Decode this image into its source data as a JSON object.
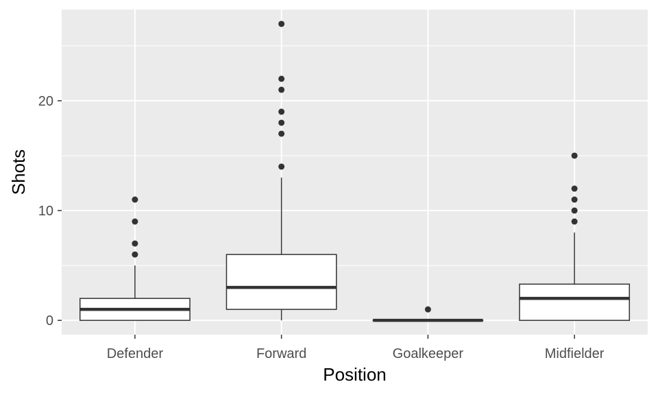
{
  "chart_data": {
    "type": "boxplot",
    "title": "",
    "xlabel": "Position",
    "ylabel": "Shots",
    "categories": [
      "Defender",
      "Forward",
      "Goalkeeper",
      "Midfielder"
    ],
    "ylim": [
      -1.3,
      28.3
    ],
    "yticks": [
      0,
      10,
      20
    ],
    "yticklabels": [
      "0",
      "10",
      "20"
    ],
    "grid": true,
    "legend": "none",
    "boxes": [
      {
        "category": "Defender",
        "whisker_low": 0,
        "q1": 0,
        "median": 1,
        "q3": 2,
        "whisker_high": 5,
        "outliers": [
          6,
          7,
          9,
          11
        ]
      },
      {
        "category": "Forward",
        "whisker_low": 0,
        "q1": 1,
        "median": 3,
        "q3": 6,
        "whisker_high": 13,
        "outliers": [
          14,
          17,
          18,
          19,
          21,
          22,
          27
        ]
      },
      {
        "category": "Goalkeeper",
        "whisker_low": 0,
        "q1": 0,
        "median": 0,
        "q3": 0,
        "whisker_high": 0,
        "outliers": [
          1
        ]
      },
      {
        "category": "Midfielder",
        "whisker_low": 0,
        "q1": 0,
        "median": 2,
        "q3": 3.3,
        "whisker_high": 8,
        "outliers": [
          9,
          10,
          11,
          12,
          15
        ]
      }
    ],
    "colors": {
      "panel": "#ebebeb",
      "grid": "#ffffff",
      "box_fill": "#ffffff",
      "line": "#333333",
      "tick_text": "#4d4d4d",
      "title_text": "#000000"
    }
  }
}
